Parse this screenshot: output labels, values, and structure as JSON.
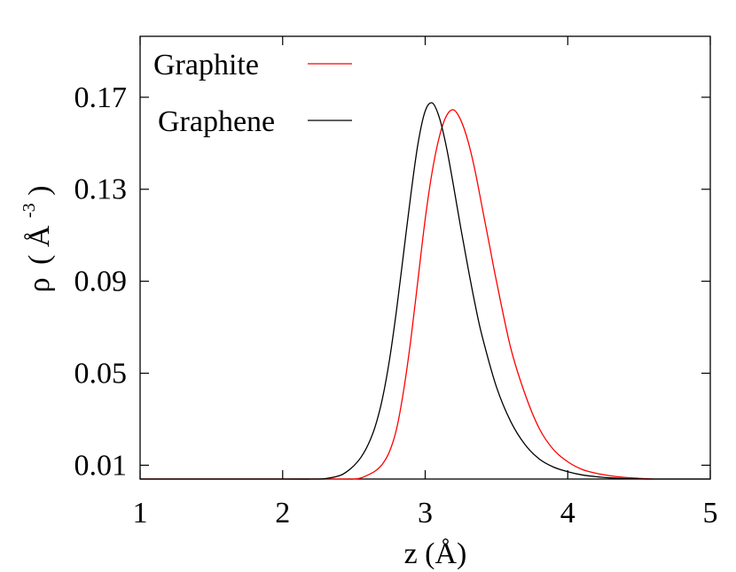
{
  "chart_data": {
    "type": "line",
    "title": "",
    "xlabel": "z (Å)",
    "ylabel": "ρ (Å⁻³)",
    "ylabel_parts": {
      "rho": "ρ",
      "open": "(",
      "angstrom": "Å",
      "exp": "-3",
      "close": ")"
    },
    "xlim": [
      1,
      5
    ],
    "ylim": [
      0.004,
      0.1965
    ],
    "x_ticks": [
      1,
      2,
      3,
      4,
      5
    ],
    "x_tick_labels": [
      "1",
      "2",
      "3",
      "4",
      "5"
    ],
    "y_ticks": [
      0.01,
      0.05,
      0.09,
      0.13,
      0.17
    ],
    "y_tick_labels": [
      "0.01",
      "0.05",
      "0.09",
      "0.13",
      "0.17"
    ],
    "grid": false,
    "legend": "top-left",
    "series": [
      {
        "name": "Graphite",
        "color": "#ff0000",
        "x": [
          1.0,
          2.0,
          2.4,
          2.5,
          2.55,
          2.6,
          2.65,
          2.7,
          2.75,
          2.8,
          2.85,
          2.9,
          2.95,
          3.0,
          3.05,
          3.1,
          3.15,
          3.2,
          3.25,
          3.3,
          3.35,
          3.4,
          3.45,
          3.5,
          3.6,
          3.7,
          3.8,
          3.9,
          4.0,
          4.1,
          4.2,
          4.3,
          4.4,
          4.5,
          4.6
        ],
        "y": [
          0.004,
          0.004,
          0.004,
          0.004,
          0.0045,
          0.0058,
          0.0075,
          0.0105,
          0.016,
          0.026,
          0.043,
          0.065,
          0.091,
          0.117,
          0.138,
          0.153,
          0.162,
          0.1645,
          0.16,
          0.151,
          0.138,
          0.122,
          0.106,
          0.09,
          0.061,
          0.041,
          0.026,
          0.0168,
          0.0115,
          0.0082,
          0.0065,
          0.0054,
          0.0047,
          0.0043,
          0.004
        ]
      },
      {
        "name": "Graphene",
        "color": "#000000",
        "x": [
          1.0,
          2.0,
          2.2,
          2.3,
          2.4,
          2.45,
          2.5,
          2.55,
          2.6,
          2.65,
          2.7,
          2.75,
          2.8,
          2.85,
          2.9,
          2.95,
          3.0,
          3.05,
          3.1,
          3.15,
          3.2,
          3.25,
          3.3,
          3.35,
          3.4,
          3.5,
          3.6,
          3.7,
          3.8,
          3.9,
          4.0,
          4.1,
          4.2,
          4.3,
          4.4,
          4.5,
          4.6,
          5.0
        ],
        "y": [
          0.004,
          0.004,
          0.004,
          0.0042,
          0.0055,
          0.0072,
          0.0098,
          0.0135,
          0.019,
          0.027,
          0.039,
          0.056,
          0.078,
          0.103,
          0.128,
          0.15,
          0.164,
          0.1675,
          0.161,
          0.148,
          0.131,
          0.113,
          0.096,
          0.08,
          0.066,
          0.044,
          0.029,
          0.019,
          0.0127,
          0.0092,
          0.0072,
          0.0058,
          0.005,
          0.0045,
          0.0042,
          0.0041,
          0.004,
          0.004
        ]
      }
    ]
  }
}
